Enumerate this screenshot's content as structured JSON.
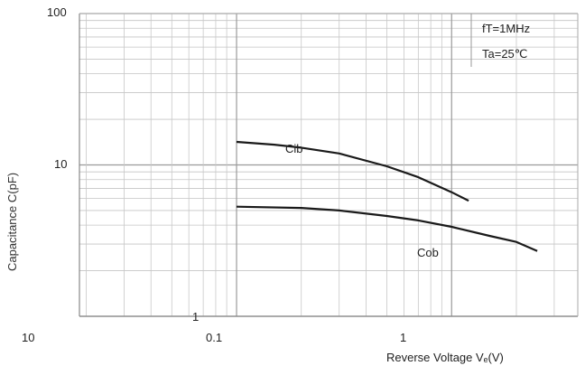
{
  "chart_data": {
    "type": "line",
    "title": "",
    "xlabel": "Reverse Voltage Vₑ(V)",
    "ylabel": "Capacitance C(pF)",
    "xscale": "log",
    "yscale": "log",
    "xlim": [
      0.1,
      2.5
    ],
    "ylim": [
      1,
      100
    ],
    "grid": true,
    "conditions": [
      "fT=1MHz",
      "Ta=25℃"
    ],
    "y_tick_labels": [
      "100",
      "10",
      "1"
    ],
    "x_tick_labels": [
      "10",
      "0.1",
      "1"
    ],
    "series": [
      {
        "name": "Cib",
        "x": [
          0.1,
          0.15,
          0.2,
          0.3,
          0.5,
          0.7,
          1.0,
          1.2
        ],
        "y": [
          14.2,
          13.6,
          13.0,
          11.9,
          9.8,
          8.3,
          6.6,
          5.8
        ]
      },
      {
        "name": "Cob",
        "x": [
          0.1,
          0.2,
          0.3,
          0.5,
          0.7,
          1.0,
          1.5,
          2.0,
          2.5
        ],
        "y": [
          5.3,
          5.2,
          5.0,
          4.6,
          4.3,
          3.9,
          3.4,
          3.1,
          2.7
        ]
      }
    ]
  }
}
